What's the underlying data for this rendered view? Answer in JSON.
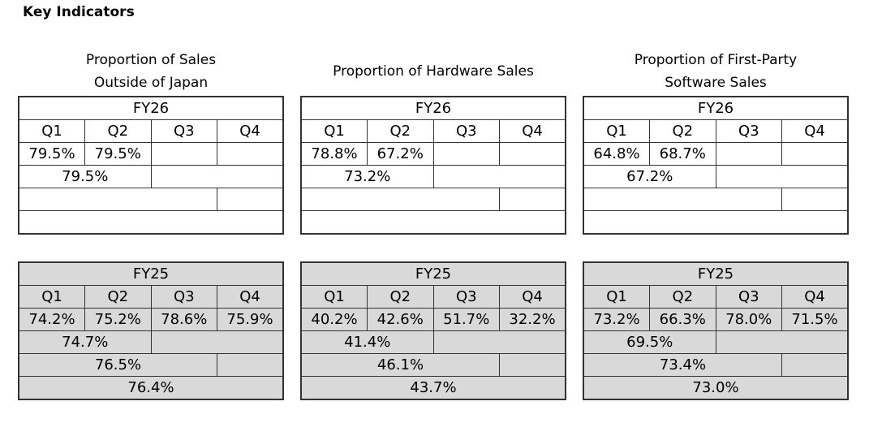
{
  "header": {
    "title": "Key Indicators"
  },
  "panels": [
    {
      "title": [
        "Proportion of Sales",
        "Outside of Japan"
      ],
      "tables": [
        {
          "year": "FY26",
          "quarters": [
            "Q1",
            "Q2",
            "Q3",
            "Q4"
          ],
          "quarterly": [
            "79.5%",
            "79.5%",
            null,
            null
          ],
          "half": "79.5%",
          "nine_months": null,
          "full_year": null,
          "shaded": false
        },
        {
          "year": "FY25",
          "quarters": [
            "Q1",
            "Q2",
            "Q3",
            "Q4"
          ],
          "quarterly": [
            "74.2%",
            "75.2%",
            "78.6%",
            "75.9%"
          ],
          "half": "74.7%",
          "nine_months": "76.5%",
          "full_year": "76.4%",
          "shaded": true
        }
      ]
    },
    {
      "title": [
        "Proportion of Hardware Sales"
      ],
      "tables": [
        {
          "year": "FY26",
          "quarters": [
            "Q1",
            "Q2",
            "Q3",
            "Q4"
          ],
          "quarterly": [
            "78.8%",
            "67.2%",
            null,
            null
          ],
          "half": "73.2%",
          "nine_months": null,
          "full_year": null,
          "shaded": false
        },
        {
          "year": "FY25",
          "quarters": [
            "Q1",
            "Q2",
            "Q3",
            "Q4"
          ],
          "quarterly": [
            "40.2%",
            "42.6%",
            "51.7%",
            "32.2%"
          ],
          "half": "41.4%",
          "nine_months": "46.1%",
          "full_year": "43.7%",
          "shaded": true
        }
      ]
    },
    {
      "title": [
        "Proportion of First-Party",
        "Software Sales"
      ],
      "tables": [
        {
          "year": "FY26",
          "quarters": [
            "Q1",
            "Q2",
            "Q3",
            "Q4"
          ],
          "quarterly": [
            "64.8%",
            "68.7%",
            null,
            null
          ],
          "half": "67.2%",
          "nine_months": null,
          "full_year": null,
          "shaded": false
        },
        {
          "year": "FY25",
          "quarters": [
            "Q1",
            "Q2",
            "Q3",
            "Q4"
          ],
          "quarterly": [
            "73.2%",
            "66.3%",
            "78.0%",
            "71.5%"
          ],
          "half": "69.5%",
          "nine_months": "73.4%",
          "full_year": "73.0%",
          "shaded": true
        }
      ]
    }
  ]
}
